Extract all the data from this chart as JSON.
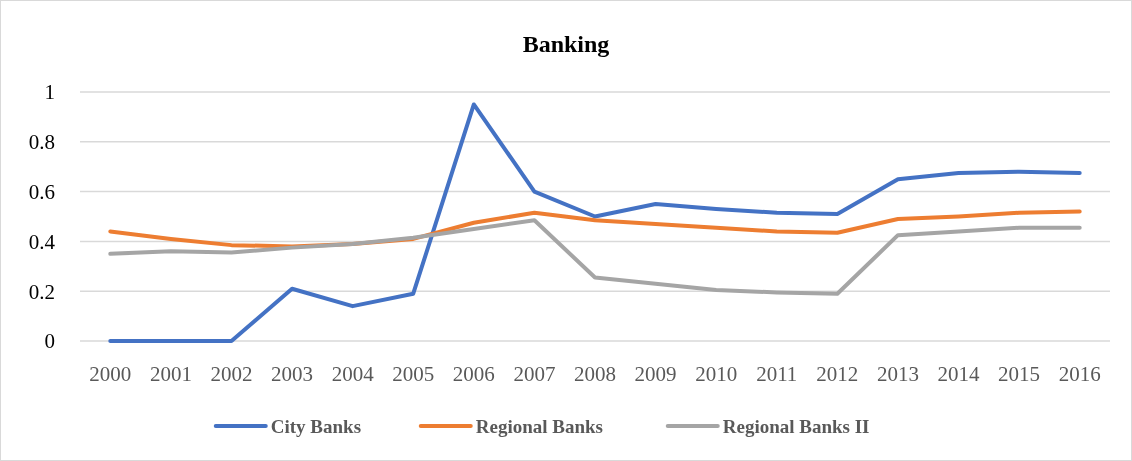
{
  "chart_data": {
    "type": "line",
    "title": "Banking",
    "categories": [
      "2000",
      "2001",
      "2002",
      "2003",
      "2004",
      "2005",
      "2006",
      "2007",
      "2008",
      "2009",
      "2010",
      "2011",
      "2012",
      "2013",
      "2014",
      "2015",
      "2016"
    ],
    "series": [
      {
        "name": "City Banks",
        "color": "#4472c4",
        "values": [
          0,
          0,
          0,
          0.21,
          0.14,
          0.19,
          0.95,
          0.6,
          0.5,
          0.55,
          0.53,
          0.515,
          0.51,
          0.65,
          0.675,
          0.68,
          0.675
        ]
      },
      {
        "name": "Regional Banks",
        "color": "#ed7d31",
        "values": [
          0.44,
          0.41,
          0.385,
          0.38,
          0.39,
          0.41,
          0.475,
          0.515,
          0.485,
          0.47,
          0.455,
          0.44,
          0.435,
          0.49,
          0.5,
          0.515,
          0.52
        ]
      },
      {
        "name": "Regional Banks II",
        "color": "#a5a5a5",
        "values": [
          0.35,
          0.36,
          0.355,
          0.375,
          0.39,
          0.415,
          0.45,
          0.485,
          0.255,
          0.23,
          0.205,
          0.195,
          0.19,
          0.425,
          0.44,
          0.455,
          0.455
        ]
      }
    ],
    "ylim": [
      0,
      1
    ],
    "yticks": [
      0,
      0.2,
      0.4,
      0.6,
      0.8,
      1
    ],
    "grid": "y",
    "legend": "bottom",
    "marker": "none",
    "line_style": "solid"
  }
}
